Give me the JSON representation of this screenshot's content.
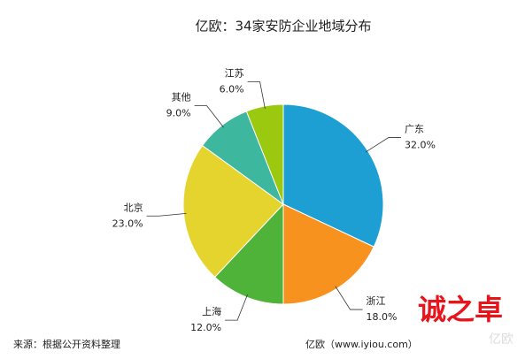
{
  "chart_data": {
    "type": "pie",
    "title": "亿欧：34家安防企业地域分布",
    "categories": [
      "广东",
      "浙江",
      "上海",
      "北京",
      "其他",
      "江苏"
    ],
    "values": [
      32,
      18,
      12,
      23,
      9,
      6
    ],
    "value_labels": [
      "32.0%",
      "18.0%",
      "12.0%",
      "23.0%",
      "9.0%",
      "6.0%"
    ],
    "colors": [
      "#1e9fd4",
      "#f7921e",
      "#4fb33a",
      "#e6d42e",
      "#3db89e",
      "#9bc90f"
    ]
  },
  "footer": {
    "source": "来源：根据公开资料整理",
    "site": "亿欧（www.iyiou.com）"
  },
  "watermark": {
    "brand": "诚之卓",
    "logo": "亿欧"
  }
}
